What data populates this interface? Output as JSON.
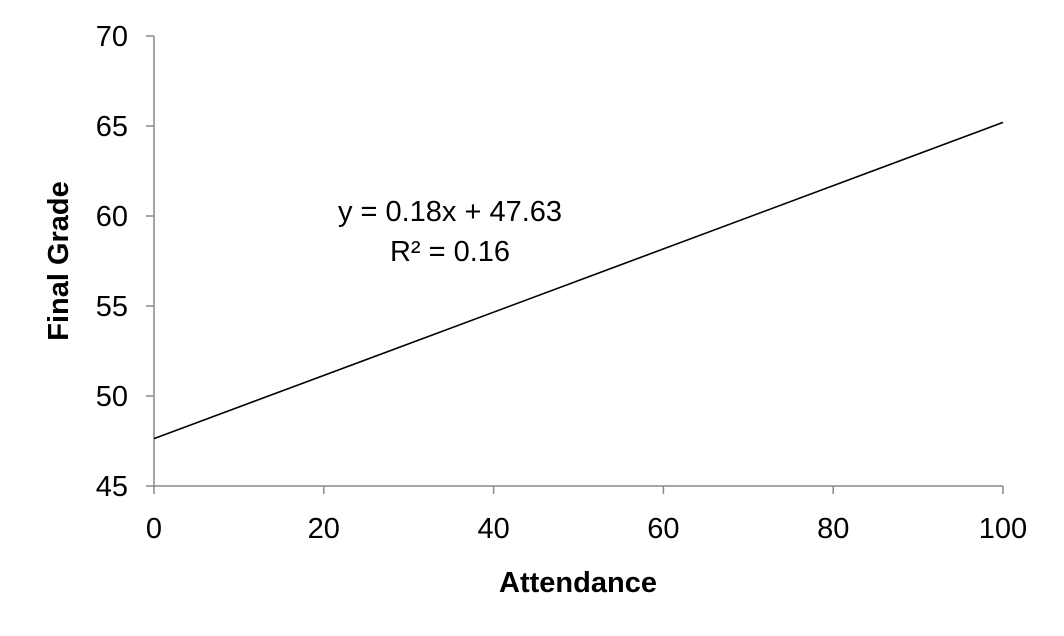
{
  "chart_data": {
    "type": "line",
    "xlabel": "Attendance",
    "ylabel": "Final Grade",
    "xlim": [
      0,
      100
    ],
    "ylim": [
      45,
      70
    ],
    "x_ticks": [
      0,
      20,
      40,
      60,
      80,
      100
    ],
    "y_ticks": [
      45,
      50,
      55,
      60,
      65,
      70
    ],
    "series": [
      {
        "x": [
          0,
          100
        ],
        "y": [
          47.63,
          65.2
        ]
      }
    ],
    "annotations": [
      "y = 0.18x + 47.63",
      "R² = 0.16"
    ],
    "grid": false,
    "line_color": "#000000",
    "axis_color": "#888888"
  }
}
